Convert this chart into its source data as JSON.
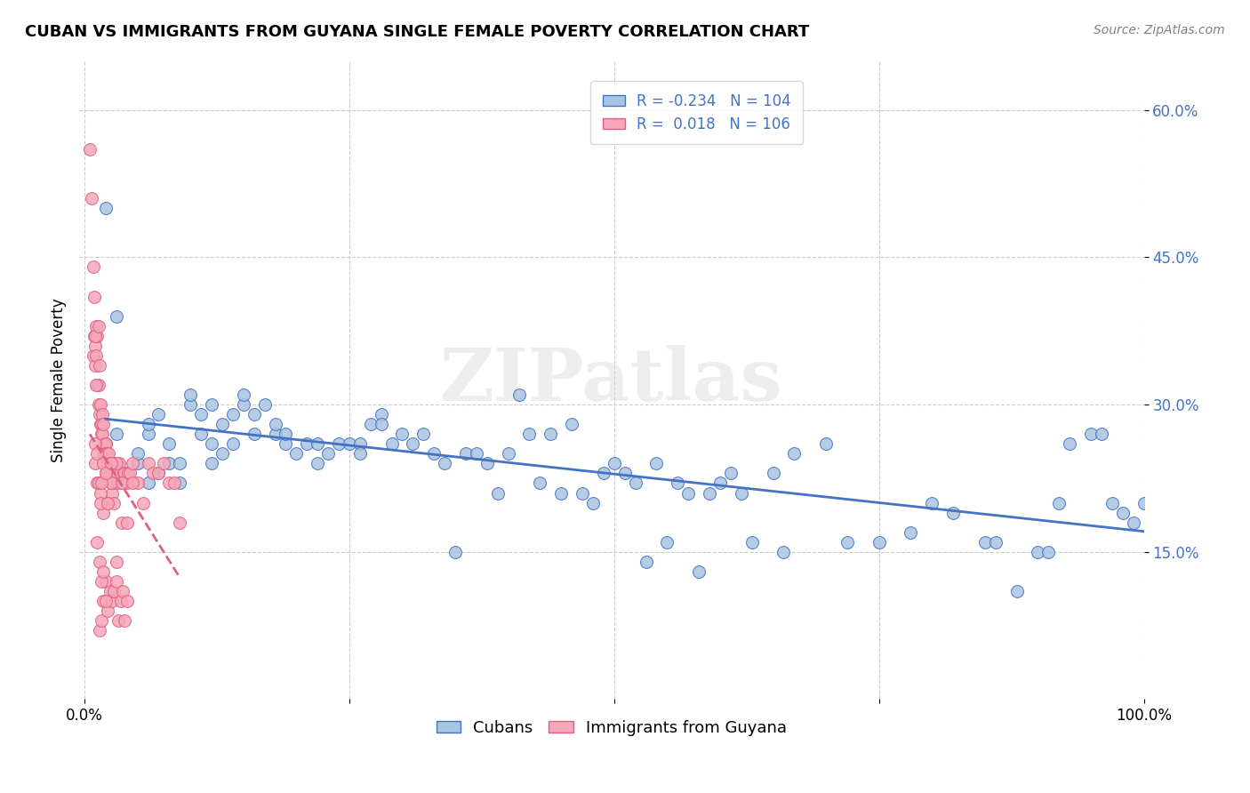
{
  "title": "CUBAN VS IMMIGRANTS FROM GUYANA SINGLE FEMALE POVERTY CORRELATION CHART",
  "source": "Source: ZipAtlas.com",
  "ylabel": "Single Female Poverty",
  "xlabel": "",
  "legend_cubans": "Cubans",
  "legend_guyana": "Immigrants from Guyana",
  "r_cubans": -0.234,
  "n_cubans": 104,
  "r_guyana": 0.018,
  "n_guyana": 106,
  "watermark": "ZIPatlas",
  "xlim": [
    0.0,
    1.0
  ],
  "ylim": [
    0.0,
    0.65
  ],
  "yticks": [
    0.15,
    0.3,
    0.45,
    0.6
  ],
  "ytick_labels": [
    "15.0%",
    "30.0%",
    "45.0%",
    "60.0%"
  ],
  "xticks": [
    0.0,
    0.25,
    0.5,
    0.75,
    1.0
  ],
  "xtick_labels": [
    "0.0%",
    "",
    "",
    "",
    "100.0%"
  ],
  "color_cubans": "#a8c4e0",
  "color_guyana": "#f4a7b9",
  "line_color_cubans": "#4472c4",
  "line_color_guyana": "#e06080",
  "background_color": "#ffffff",
  "grid_color": "#cccccc",
  "cubans_x": [
    0.02,
    0.03,
    0.05,
    0.05,
    0.06,
    0.06,
    0.06,
    0.07,
    0.07,
    0.08,
    0.08,
    0.09,
    0.09,
    0.1,
    0.1,
    0.11,
    0.11,
    0.12,
    0.12,
    0.12,
    0.13,
    0.13,
    0.14,
    0.14,
    0.15,
    0.15,
    0.16,
    0.16,
    0.17,
    0.18,
    0.18,
    0.19,
    0.19,
    0.2,
    0.21,
    0.22,
    0.22,
    0.23,
    0.24,
    0.25,
    0.26,
    0.26,
    0.27,
    0.28,
    0.28,
    0.29,
    0.3,
    0.31,
    0.32,
    0.33,
    0.34,
    0.35,
    0.36,
    0.37,
    0.38,
    0.39,
    0.4,
    0.41,
    0.42,
    0.43,
    0.44,
    0.45,
    0.46,
    0.47,
    0.48,
    0.49,
    0.5,
    0.51,
    0.52,
    0.53,
    0.54,
    0.55,
    0.56,
    0.57,
    0.58,
    0.59,
    0.6,
    0.61,
    0.62,
    0.63,
    0.65,
    0.66,
    0.67,
    0.7,
    0.72,
    0.75,
    0.78,
    0.8,
    0.82,
    0.85,
    0.86,
    0.88,
    0.9,
    0.91,
    0.92,
    0.93,
    0.95,
    0.96,
    0.97,
    0.98,
    0.99,
    1.0,
    0.02,
    0.03
  ],
  "cubans_y": [
    0.26,
    0.27,
    0.24,
    0.25,
    0.27,
    0.28,
    0.22,
    0.23,
    0.29,
    0.24,
    0.26,
    0.22,
    0.24,
    0.3,
    0.31,
    0.29,
    0.27,
    0.24,
    0.26,
    0.3,
    0.25,
    0.28,
    0.26,
    0.29,
    0.3,
    0.31,
    0.27,
    0.29,
    0.3,
    0.27,
    0.28,
    0.26,
    0.27,
    0.25,
    0.26,
    0.24,
    0.26,
    0.25,
    0.26,
    0.26,
    0.26,
    0.25,
    0.28,
    0.29,
    0.28,
    0.26,
    0.27,
    0.26,
    0.27,
    0.25,
    0.24,
    0.15,
    0.25,
    0.25,
    0.24,
    0.21,
    0.25,
    0.31,
    0.27,
    0.22,
    0.27,
    0.21,
    0.28,
    0.21,
    0.2,
    0.23,
    0.24,
    0.23,
    0.22,
    0.14,
    0.24,
    0.16,
    0.22,
    0.21,
    0.13,
    0.21,
    0.22,
    0.23,
    0.21,
    0.16,
    0.23,
    0.15,
    0.25,
    0.26,
    0.16,
    0.16,
    0.17,
    0.2,
    0.19,
    0.16,
    0.16,
    0.11,
    0.15,
    0.15,
    0.2,
    0.26,
    0.27,
    0.27,
    0.2,
    0.19,
    0.18,
    0.2,
    0.5,
    0.39
  ],
  "guyana_x": [
    0.005,
    0.007,
    0.008,
    0.009,
    0.01,
    0.01,
    0.011,
    0.011,
    0.012,
    0.012,
    0.013,
    0.013,
    0.014,
    0.014,
    0.015,
    0.015,
    0.016,
    0.016,
    0.017,
    0.017,
    0.018,
    0.018,
    0.019,
    0.019,
    0.02,
    0.02,
    0.021,
    0.021,
    0.022,
    0.022,
    0.023,
    0.024,
    0.024,
    0.025,
    0.025,
    0.026,
    0.026,
    0.027,
    0.028,
    0.03,
    0.031,
    0.033,
    0.034,
    0.035,
    0.036,
    0.037,
    0.038,
    0.04,
    0.041,
    0.043,
    0.045,
    0.05,
    0.055,
    0.06,
    0.065,
    0.07,
    0.075,
    0.08,
    0.085,
    0.09,
    0.01,
    0.012,
    0.015,
    0.018,
    0.02,
    0.022,
    0.025,
    0.028,
    0.03,
    0.035,
    0.04,
    0.045,
    0.01,
    0.012,
    0.013,
    0.015,
    0.016,
    0.018,
    0.02,
    0.022,
    0.025,
    0.014,
    0.016,
    0.018,
    0.02,
    0.022,
    0.024,
    0.026,
    0.028,
    0.03,
    0.032,
    0.034,
    0.036,
    0.038,
    0.04,
    0.012,
    0.014,
    0.016,
    0.018,
    0.02,
    0.008,
    0.009,
    0.01,
    0.011,
    0.013,
    0.03
  ],
  "guyana_y": [
    0.56,
    0.51,
    0.35,
    0.37,
    0.36,
    0.34,
    0.38,
    0.35,
    0.37,
    0.32,
    0.32,
    0.3,
    0.34,
    0.29,
    0.28,
    0.3,
    0.28,
    0.27,
    0.27,
    0.29,
    0.25,
    0.28,
    0.26,
    0.25,
    0.26,
    0.25,
    0.24,
    0.25,
    0.24,
    0.23,
    0.25,
    0.24,
    0.23,
    0.22,
    0.23,
    0.23,
    0.21,
    0.22,
    0.24,
    0.23,
    0.22,
    0.24,
    0.23,
    0.18,
    0.22,
    0.23,
    0.23,
    0.22,
    0.23,
    0.23,
    0.24,
    0.22,
    0.2,
    0.24,
    0.23,
    0.23,
    0.24,
    0.22,
    0.22,
    0.18,
    0.24,
    0.22,
    0.21,
    0.19,
    0.23,
    0.2,
    0.22,
    0.2,
    0.24,
    0.22,
    0.18,
    0.22,
    0.26,
    0.25,
    0.22,
    0.2,
    0.22,
    0.24,
    0.23,
    0.2,
    0.24,
    0.07,
    0.08,
    0.1,
    0.12,
    0.09,
    0.11,
    0.1,
    0.11,
    0.12,
    0.08,
    0.1,
    0.11,
    0.08,
    0.1,
    0.16,
    0.14,
    0.12,
    0.13,
    0.1,
    0.44,
    0.41,
    0.37,
    0.32,
    0.38,
    0.14
  ]
}
